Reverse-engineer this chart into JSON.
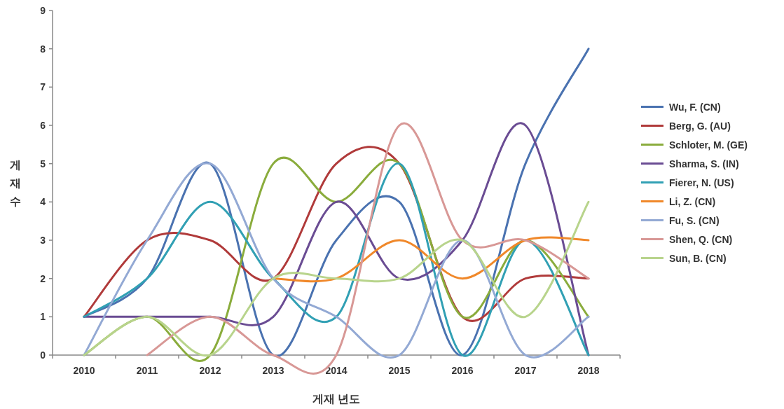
{
  "chart_data": {
    "type": "line",
    "xlabel": "게재 년도",
    "ylabel": "게재 수",
    "categories": [
      "2010",
      "2011",
      "2012",
      "2013",
      "2014",
      "2015",
      "2016",
      "2017",
      "2018"
    ],
    "ylim": [
      0,
      9
    ],
    "yticks": [
      0,
      1,
      2,
      3,
      4,
      5,
      6,
      7,
      8,
      9
    ],
    "legend": "right",
    "marker": "none",
    "line_style": "solid",
    "series": [
      {
        "name": "Wu, F. (CN)",
        "color": "#4a72b0",
        "values": [
          1,
          2,
          5,
          0,
          3,
          4,
          0,
          5,
          8
        ]
      },
      {
        "name": "Berg, G. (AU)",
        "color": "#b03a3a",
        "values": [
          1,
          3,
          3,
          2,
          5,
          5,
          1,
          2,
          2
        ]
      },
      {
        "name": "Schloter, M. (GE)",
        "color": "#8aac3c",
        "values": [
          0,
          1,
          0,
          5,
          4,
          5,
          1,
          3,
          1
        ]
      },
      {
        "name": "Sharma, S. (IN)",
        "color": "#6a4c93",
        "values": [
          1,
          1,
          1,
          1,
          4,
          2,
          3,
          6,
          0
        ]
      },
      {
        "name": "Fierer, N. (US)",
        "color": "#31a0b4",
        "values": [
          1,
          2,
          4,
          2,
          1,
          5,
          0,
          3,
          0
        ]
      },
      {
        "name": "Li, Z. (CN)",
        "color": "#f0882a",
        "values": [
          null,
          null,
          null,
          2,
          2,
          3,
          2,
          3,
          3
        ]
      },
      {
        "name": "Fu, S. (CN)",
        "color": "#93a9d4",
        "values": [
          0,
          3,
          5,
          2,
          1,
          0,
          3,
          0,
          1
        ]
      },
      {
        "name": "Shen, Q. (CN)",
        "color": "#d89896",
        "values": [
          null,
          0,
          1,
          0,
          0,
          6,
          3,
          3,
          2
        ]
      },
      {
        "name": "Sun, B. (CN)",
        "color": "#b8d48c",
        "values": [
          0,
          1,
          0,
          2,
          2,
          2,
          3,
          1,
          4
        ]
      }
    ]
  }
}
